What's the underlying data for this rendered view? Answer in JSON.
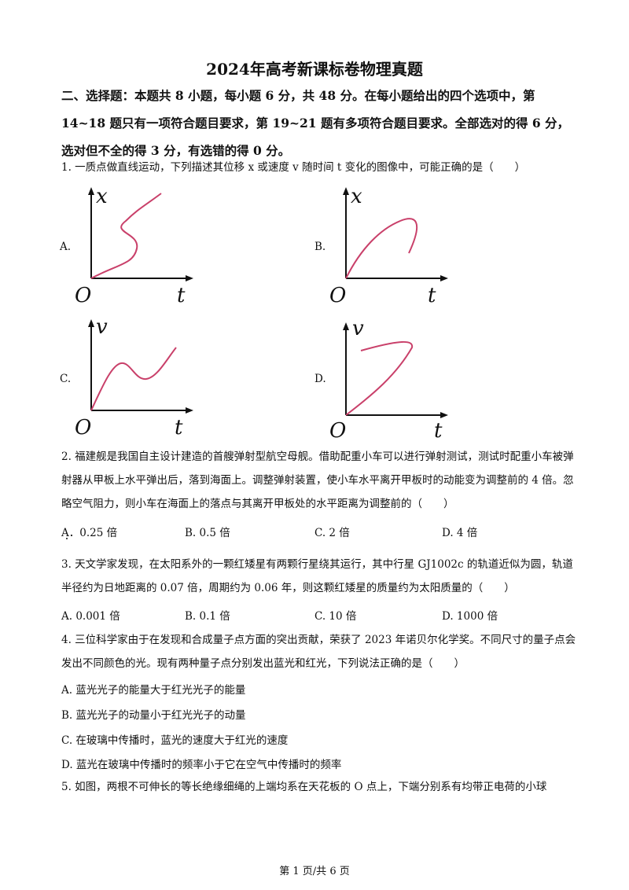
{
  "title": "2024年高考新课标卷物理真题",
  "section_header": "二、选择题：本题共 8 小题，每小题 6 分，共 48 分。在每小题给出的四个选项中，第 14~18 题只有一项符合题目要求，第 19~21 题有多项符合题目要求。全部选对的得 6 分，选对但不全的得 3 分，有选错的得 0 分。",
  "q1": {
    "stem": "1. 一质点做直线运动，下列描述其位移 x 或速度 v 随时间 t 变化的图像中，可能正确的是（　　）",
    "options": [
      {
        "label": "A.",
        "y_axis": "x",
        "x_axis": "t",
        "origin": "O"
      },
      {
        "label": "B.",
        "y_axis": "x",
        "x_axis": "t",
        "origin": "O"
      },
      {
        "label": "C.",
        "y_axis": "v",
        "x_axis": "t",
        "origin": "O"
      },
      {
        "label": "D.",
        "y_axis": "v",
        "x_axis": "t",
        "origin": "O"
      }
    ],
    "curve_color": "#c9406a"
  },
  "q2": {
    "stem": "2. 福建舰是我国自主设计建造的首艘弹射型航空母舰。借助配重小车可以进行弹射测试，测试时配重小车被弹射器从甲板上水平弹出后，落到海面上。调整弹射装置，使小车水平离开甲板时的动能变为调整前的 4 倍。忽略空气阻力，则小车在海面上的落点与其离开甲板处的水平距离为调整前的（　　）",
    "options": [
      "A．0.25 倍",
      "B. 0.5 倍",
      "C. 2 倍",
      "D. 4 倍"
    ]
  },
  "q3": {
    "stem": "3. 天文学家发现，在太阳系外的一颗红矮星有两颗行星绕其运行，其中行星 GJ1002c 的轨道近似为圆，轨道半径约为日地距离的 0.07 倍，周期约为 0.06 年，则这颗红矮星的质量约为太阳质量的（　　）",
    "options": [
      "A. 0.001 倍",
      "B. 0.1 倍",
      "C. 10 倍",
      "D. 1000 倍"
    ]
  },
  "q4": {
    "stem": "4. 三位科学家由于在发现和合成量子点方面的突出贡献，荣获了 2023 年诺贝尔化学奖。不同尺寸的量子点会发出不同颜色的光。现有两种量子点分别发出蓝光和红光，下列说法正确的是（　　）",
    "options": [
      "A. 蓝光光子的能量大于红光光子的能量",
      "B. 蓝光光子的动量小于红光光子的动量",
      "C. 在玻璃中传播时，蓝光的速度大于红光的速度",
      "D. 蓝光在玻璃中传播时的频率小于它在空气中传播时的频率"
    ]
  },
  "q5": {
    "stem": "5. 如图，两根不可伸长的等长绝缘细绳的上端均系在天花板的 O 点上，下端分别系有均带正电荷的小球"
  },
  "footer": "第 1 页/共 6 页"
}
